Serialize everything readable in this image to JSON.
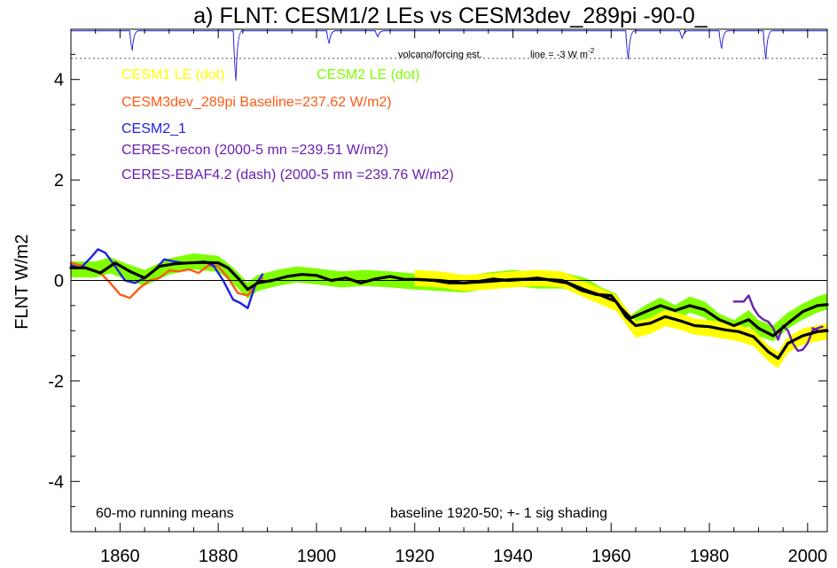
{
  "chart_data": {
    "type": "line",
    "title": "a) FLNT: CESM1/2 LEs vs CESM3dev_289pi -90-0_",
    "ylabel": "FLNT W/m2",
    "xlabel": "",
    "xlim": [
      1850,
      2004
    ],
    "ylim": [
      -5,
      5
    ],
    "x_ticks": [
      1860,
      1880,
      1900,
      1920,
      1940,
      1960,
      1980,
      2000
    ],
    "y_ticks": [
      4,
      2,
      0,
      -2,
      -4
    ],
    "x_tick_labels": [
      "1860",
      "1880",
      "1900",
      "1920",
      "1940",
      "1960",
      "1980",
      "2000"
    ],
    "y_tick_labels": [
      "4",
      "2",
      "0",
      "-2",
      "-4"
    ],
    "legend": [
      {
        "text": "CESM1 LE (dot)",
        "color": "#ffff00"
      },
      {
        "text": "CESM2 LE (dot)",
        "color": "#7fff00"
      },
      {
        "text": "CESM3dev_289pi Baseline=237.62 W/m2)",
        "color": "#ff5a14"
      },
      {
        "text": "CESM2_1",
        "color": "#1e1ee6"
      },
      {
        "text": "CERES-recon (2000-5 mn =239.51 W/m2)",
        "color": "#6a1fb0"
      },
      {
        "text": "CERES-EBAF4.2 (dash) (2000-5 mn =239.76 W/m2)",
        "color": "#6a1fb0"
      }
    ],
    "volcano_label": "volcano/forcing est.",
    "volcano_line_label": "line = -3 W m",
    "volcano_line_label_sup": "-2",
    "annotation_left": "60-mo running means",
    "annotation_right": "baseline 1920-50; +- 1 sig shading",
    "volcano_dotted_y": 4.42,
    "volcano_base_y": 4.97,
    "volcano_dips": [
      {
        "x": 1862.5,
        "y": 4.58
      },
      {
        "x": 1883.6,
        "y": 3.98
      },
      {
        "x": 1902.6,
        "y": 4.72
      },
      {
        "x": 1912.5,
        "y": 4.85
      },
      {
        "x": 1963.5,
        "y": 4.4
      },
      {
        "x": 1974.5,
        "y": 4.82
      },
      {
        "x": 1982.5,
        "y": 4.62
      },
      {
        "x": 1991.5,
        "y": 4.4
      }
    ],
    "series": [
      {
        "name": "CESM2 LE (dot)",
        "color": "#7fff00",
        "kind": "band",
        "x": [
          1850,
          1855,
          1858,
          1862,
          1865,
          1870,
          1875,
          1880,
          1883,
          1886,
          1888,
          1892,
          1896,
          1900,
          1905,
          1910,
          1915,
          1920,
          1925,
          1930,
          1935,
          1940,
          1945,
          1950,
          1955,
          1958,
          1961,
          1964,
          1967,
          1970,
          1973,
          1976,
          1979,
          1982,
          1985,
          1988,
          1990,
          1993,
          1996,
          1999,
          2002,
          2004
        ],
        "mean": [
          0.22,
          0.22,
          0.3,
          0.15,
          0.05,
          0.28,
          0.38,
          0.33,
          0.1,
          -0.2,
          -0.05,
          0.05,
          0.12,
          0.08,
          0.02,
          0.05,
          0.02,
          -0.02,
          -0.05,
          -0.08,
          0.0,
          0.05,
          0.0,
          0.0,
          -0.12,
          -0.3,
          -0.42,
          -0.85,
          -0.65,
          -0.5,
          -0.65,
          -0.48,
          -0.58,
          -0.82,
          -0.95,
          -0.75,
          -0.95,
          -1.05,
          -0.8,
          -0.62,
          -0.48,
          -0.42
        ],
        "sigma": 0.16
      },
      {
        "name": "CESM1 LE (dot)",
        "color": "#ffff00",
        "kind": "band",
        "x": [
          1920,
          1925,
          1930,
          1935,
          1940,
          1945,
          1950,
          1955,
          1958,
          1961,
          1963,
          1965,
          1968,
          1971,
          1974,
          1977,
          1980,
          1983,
          1986,
          1989,
          1992,
          1994,
          1996,
          1999,
          2002,
          2004
        ],
        "mean": [
          0.05,
          0.02,
          -0.05,
          -0.02,
          0.02,
          0.05,
          0.02,
          -0.2,
          -0.32,
          -0.45,
          -0.7,
          -0.98,
          -0.9,
          -0.75,
          -0.82,
          -0.92,
          -0.95,
          -1.0,
          -1.05,
          -1.15,
          -1.45,
          -1.58,
          -1.28,
          -1.12,
          -1.05,
          -1.02
        ],
        "sigma": 0.16
      },
      {
        "name": "CESM3dev_289pi Baseline=237.62 W/m2)",
        "color": "#ff5a14",
        "kind": "line",
        "x": [
          1850,
          1852,
          1854,
          1856,
          1858,
          1860,
          1862,
          1864,
          1866,
          1868,
          1870,
          1872,
          1874,
          1876,
          1878,
          1880,
          1882,
          1884,
          1886,
          1888,
          1889
        ],
        "y": [
          0.35,
          0.3,
          0.22,
          0.15,
          -0.05,
          -0.28,
          -0.35,
          -0.15,
          0.0,
          0.05,
          0.2,
          0.18,
          0.22,
          0.15,
          0.3,
          0.28,
          0.05,
          -0.25,
          -0.3,
          -0.05,
          0.05
        ]
      },
      {
        "name": "CESM2_1",
        "color": "#1e1ee6",
        "kind": "line",
        "x": [
          1850,
          1852,
          1854,
          1855.5,
          1857,
          1859,
          1861,
          1863,
          1865,
          1867,
          1869,
          1871,
          1873,
          1875,
          1877,
          1879,
          1881,
          1883,
          1884.5,
          1886,
          1887.5,
          1889
        ],
        "y": [
          0.3,
          0.25,
          0.45,
          0.62,
          0.55,
          0.28,
          0.0,
          -0.05,
          0.05,
          0.2,
          0.42,
          0.38,
          0.35,
          0.35,
          0.38,
          0.3,
          0.0,
          -0.38,
          -0.45,
          -0.55,
          -0.1,
          0.12
        ]
      },
      {
        "name": "CERES-recon (2000-5 mn =239.51 W/m2)",
        "color": "#6a1fb0",
        "kind": "line",
        "x": [
          1985,
          1987,
          1988,
          1989,
          1990,
          1991,
          1992,
          1993,
          1994,
          1995,
          1996,
          1997,
          1998,
          1999,
          2000,
          2001,
          2002,
          2003
        ],
        "y": [
          -0.42,
          -0.42,
          -0.3,
          -0.55,
          -0.7,
          -0.78,
          -0.82,
          -0.95,
          -1.18,
          -0.9,
          -1.0,
          -1.25,
          -1.4,
          -1.38,
          -1.25,
          -1.0,
          -0.95,
          -0.92
        ]
      },
      {
        "name": "CERES-EBAF4.2 (dash) (2000-5 mn =239.76 W/m2)",
        "color": "#6a1fb0",
        "kind": "line",
        "dashed": true,
        "x": [
          2001,
          2002.5,
          2004
        ],
        "y": [
          -0.95,
          -1.0,
          -0.98
        ]
      },
      {
        "name": "black-mean-1",
        "color": "#000000",
        "kind": "line",
        "x": [
          1850,
          1853,
          1856,
          1859,
          1862,
          1865,
          1868,
          1871,
          1874,
          1877,
          1880,
          1882,
          1884,
          1886,
          1888,
          1891,
          1894,
          1897,
          1900,
          1903,
          1906,
          1909,
          1912,
          1915,
          1918,
          1921,
          1924,
          1927,
          1930,
          1933,
          1936,
          1939,
          1942,
          1945,
          1948,
          1951,
          1954,
          1957,
          1960,
          1962,
          1964,
          1967,
          1970,
          1973,
          1976,
          1979,
          1982,
          1985,
          1988,
          1990,
          1993,
          1996,
          1999,
          2002,
          2004
        ],
        "y": [
          0.25,
          0.25,
          0.15,
          0.35,
          0.18,
          0.05,
          0.28,
          0.33,
          0.35,
          0.36,
          0.35,
          0.25,
          0.05,
          -0.18,
          -0.05,
          0.0,
          0.08,
          0.12,
          0.1,
          0.0,
          0.05,
          -0.05,
          0.03,
          0.08,
          0.02,
          0.02,
          0.0,
          -0.05,
          -0.05,
          -0.02,
          0.03,
          0.0,
          0.02,
          0.05,
          0.0,
          -0.05,
          -0.2,
          -0.28,
          -0.3,
          -0.55,
          -0.75,
          -0.62,
          -0.5,
          -0.6,
          -0.5,
          -0.58,
          -0.78,
          -0.9,
          -0.78,
          -0.95,
          -1.1,
          -0.85,
          -0.62,
          -0.5,
          -0.48
        ]
      },
      {
        "name": "black-mean-2",
        "color": "#000000",
        "kind": "line",
        "x": [
          1920,
          1925,
          1930,
          1935,
          1940,
          1945,
          1950,
          1955,
          1958,
          1961,
          1963,
          1965,
          1968,
          1971,
          1974,
          1977,
          1980,
          1983,
          1986,
          1989,
          1992,
          1994,
          1996,
          1999,
          2002,
          2004
        ],
        "y": [
          0.02,
          0.0,
          -0.05,
          -0.02,
          0.02,
          0.03,
          0.0,
          -0.2,
          -0.3,
          -0.42,
          -0.72,
          -0.9,
          -0.85,
          -0.72,
          -0.8,
          -0.9,
          -0.92,
          -0.98,
          -1.02,
          -1.12,
          -1.42,
          -1.55,
          -1.25,
          -1.1,
          -1.02,
          -1.0
        ]
      }
    ]
  }
}
